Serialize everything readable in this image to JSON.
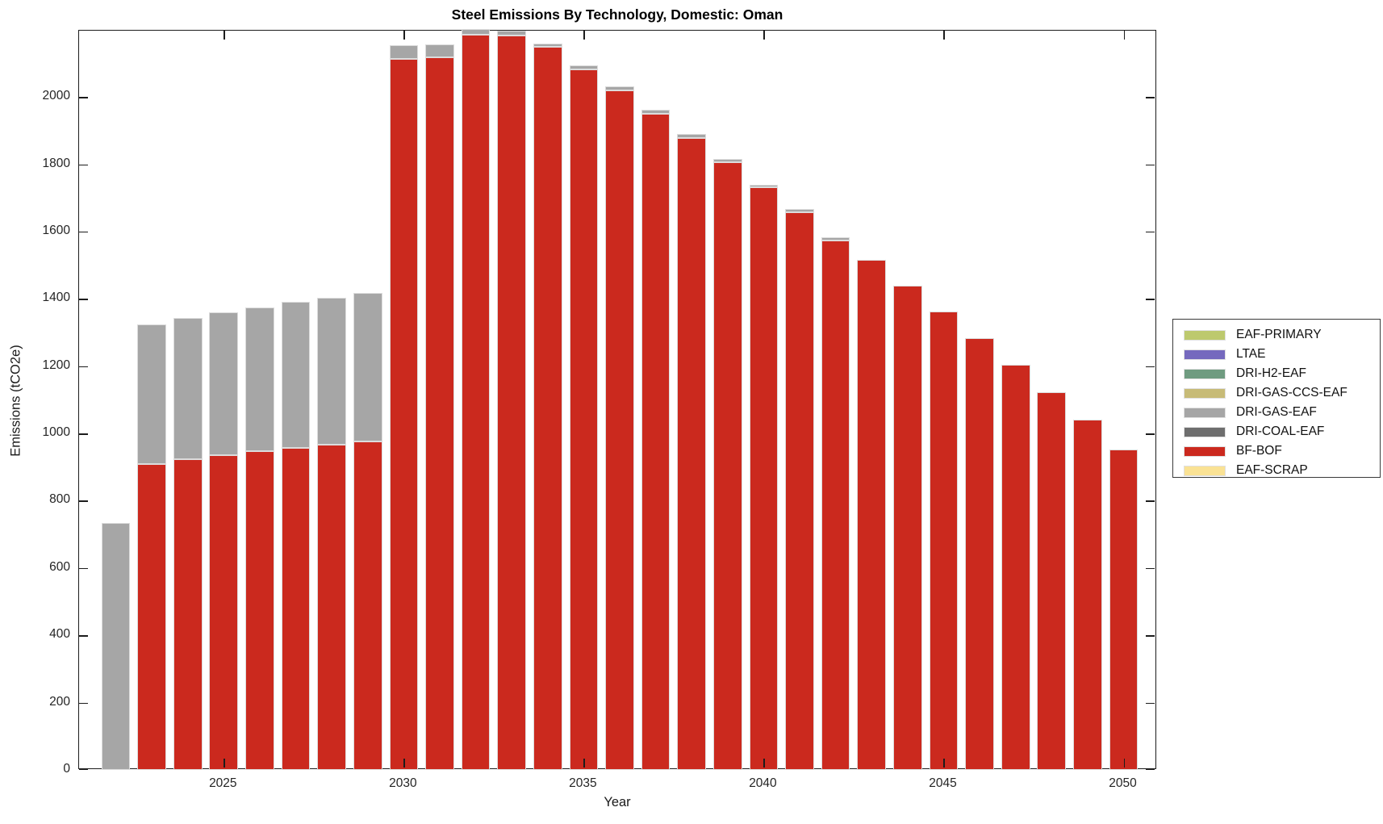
{
  "title": "Steel Emissions By Technology, Domestic: Oman",
  "chart_data": {
    "type": "bar",
    "stacked": true,
    "title": "Steel Emissions By Technology, Domestic: Oman",
    "xlabel": "Year",
    "ylabel": "Emissions (tCO2e)",
    "grid": false,
    "legend_position": "right-outside",
    "xlim": [
      2020.98,
      2050.93
    ],
    "ylim": [
      0,
      2197
    ],
    "bar_width": 0.8,
    "xticks": [
      2025,
      2030,
      2035,
      2040,
      2045,
      2050
    ],
    "yticks": [
      0,
      200,
      400,
      600,
      800,
      1000,
      1200,
      1400,
      1600,
      1800,
      2000
    ],
    "categories": [
      2022,
      2023,
      2024,
      2025,
      2026,
      2027,
      2028,
      2029,
      2030,
      2031,
      2032,
      2033,
      2034,
      2035,
      2036,
      2037,
      2038,
      2039,
      2040,
      2041,
      2042,
      2043,
      2044,
      2045,
      2046,
      2047,
      2048,
      2049,
      2050
    ],
    "series": [
      {
        "name": "EAF-PRIMARY",
        "color": "#BDC96E",
        "values": [
          0,
          0,
          0,
          0,
          0,
          0,
          0,
          0,
          0,
          0,
          0,
          0,
          0,
          0,
          0,
          0,
          0,
          0,
          0,
          0,
          0,
          0,
          0,
          0,
          0,
          0,
          0,
          0,
          0
        ]
      },
      {
        "name": "LTAE",
        "color": "#7569BE",
        "values": [
          0,
          0,
          0,
          0,
          0,
          0,
          0,
          0,
          0,
          0,
          0,
          0,
          0,
          0,
          0,
          0,
          0,
          0,
          0,
          0,
          0,
          0,
          0,
          0,
          0,
          0,
          0,
          0,
          0
        ]
      },
      {
        "name": "DRI-H2-EAF",
        "color": "#6F9B80",
        "values": [
          0,
          0,
          0,
          0,
          0,
          0,
          0,
          0,
          0,
          0,
          0,
          0,
          0,
          0,
          0,
          0,
          0,
          0,
          0,
          0,
          0,
          0,
          0,
          0,
          0,
          0,
          0,
          0,
          0
        ]
      },
      {
        "name": "DRI-GAS-CCS-EAF",
        "color": "#C7BB77",
        "values": [
          0,
          0,
          0,
          0,
          0,
          0,
          0,
          0,
          0,
          0,
          0,
          0,
          0,
          0,
          0,
          0,
          0,
          0,
          0,
          0,
          0,
          0,
          0,
          0,
          0,
          0,
          0,
          0,
          0
        ]
      },
      {
        "name": "DRI-GAS-EAF",
        "color": "#A6A6A6",
        "values": [
          735,
          415,
          420,
          424,
          428,
          433,
          438,
          442,
          40,
          40,
          18,
          16,
          10,
          12,
          12,
          11,
          12,
          9,
          8,
          8,
          9,
          0,
          0,
          0,
          0,
          0,
          0,
          0,
          0
        ]
      },
      {
        "name": "DRI-COAL-EAF",
        "color": "#6E6E6E",
        "values": [
          0,
          0,
          0,
          0,
          0,
          0,
          0,
          0,
          0,
          0,
          0,
          0,
          0,
          0,
          0,
          0,
          0,
          0,
          0,
          0,
          0,
          0,
          0,
          0,
          0,
          0,
          0,
          0,
          0
        ]
      },
      {
        "name": "BF-BOF",
        "color": "#CB291E",
        "values": [
          0,
          910,
          923,
          936,
          947,
          957,
          966,
          975,
          2113,
          2117,
          2185,
          2182,
          2148,
          2083,
          2019,
          1950,
          1878,
          1807,
          1731,
          1658,
          1574,
          1516,
          1440,
          1362,
          1284,
          1204,
          1122,
          1040,
          952
        ]
      },
      {
        "name": "EAF-SCRAP",
        "color": "#FAE294",
        "values": [
          0,
          0,
          0,
          0,
          0,
          0,
          0,
          0,
          0,
          0,
          0,
          0,
          0,
          0,
          0,
          0,
          0,
          0,
          0,
          0,
          0,
          0,
          0,
          0,
          0,
          0,
          0,
          0,
          0
        ]
      }
    ],
    "stack_order_bottom_to_top": [
      "EAF-SCRAP",
      "BF-BOF",
      "DRI-COAL-EAF",
      "DRI-GAS-EAF",
      "DRI-GAS-CCS-EAF",
      "DRI-H2-EAF",
      "LTAE",
      "EAF-PRIMARY"
    ]
  }
}
